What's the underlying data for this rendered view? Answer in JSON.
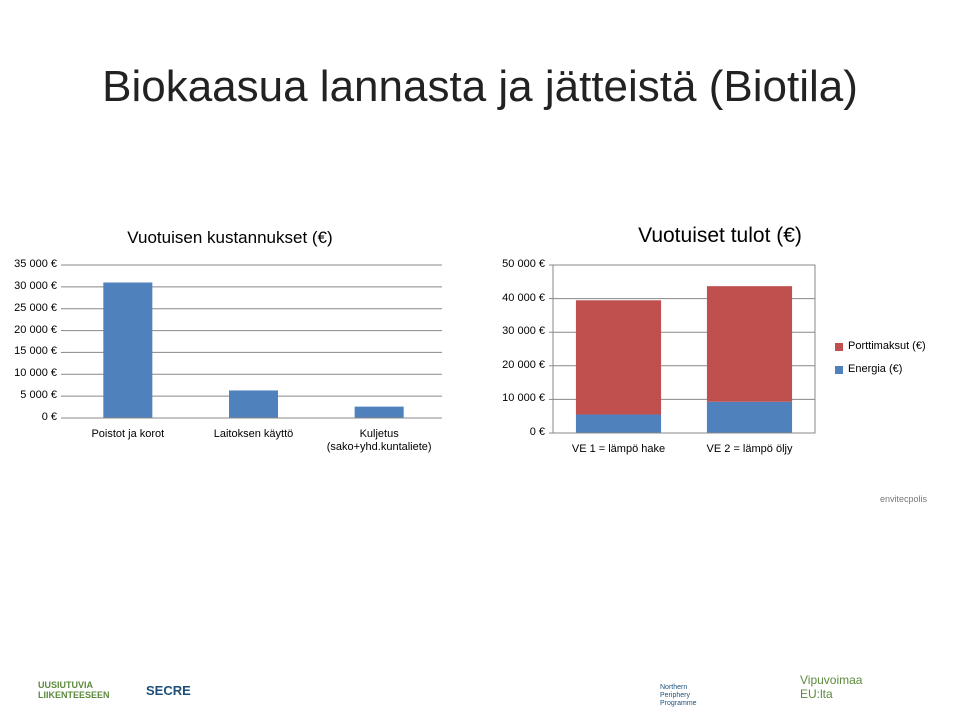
{
  "slide_title": "Biokaasua lannasta ja jätteistä (Biotila)",
  "chart_data": [
    {
      "type": "bar",
      "title": "Vuotuisen kustannukset (€)",
      "categories": [
        "Poistot ja korot",
        "Laitoksen käyttö",
        "Kuljetus\n(sako+yhd.kuntaliete)"
      ],
      "values": [
        31000,
        6300,
        2600
      ],
      "color": "#4f81bd",
      "ylim": [
        0,
        35000
      ],
      "yticks": [
        {
          "value": 0,
          "label": "0 €"
        },
        {
          "value": 5000,
          "label": "5 000 €"
        },
        {
          "value": 10000,
          "label": "10 000 €"
        },
        {
          "value": 15000,
          "label": "15 000 €"
        },
        {
          "value": 20000,
          "label": "20 000 €"
        },
        {
          "value": 25000,
          "label": "25 000 €"
        },
        {
          "value": 30000,
          "label": "30 000 €"
        },
        {
          "value": 35000,
          "label": "35 000 €"
        }
      ],
      "grid": true
    },
    {
      "type": "stacked_bar",
      "title": "Vuotuiset tulot (€)",
      "categories": [
        "VE 1 = lämpö hake",
        "VE 2 = lämpö öljy"
      ],
      "series": [
        {
          "name": "Energia (€)",
          "color": "#4f81bd",
          "values": [
            5500,
            9300
          ]
        },
        {
          "name": "Porttimaksut (€)",
          "color": "#c0504d",
          "values": [
            34000,
            34400
          ]
        }
      ],
      "ylim": [
        0,
        50000
      ],
      "yticks": [
        {
          "value": 0,
          "label": "0 €"
        },
        {
          "value": 10000,
          "label": "10 000 €"
        },
        {
          "value": 20000,
          "label": "20 000 €"
        },
        {
          "value": 30000,
          "label": "30 000 €"
        },
        {
          "value": 40000,
          "label": "40 000 €"
        },
        {
          "value": 50000,
          "label": "50 000 €"
        }
      ],
      "grid": true,
      "legend": "right"
    }
  ],
  "logos": [
    "UUSIUTUVIA\nLIIKENTEESEEN",
    "SECRE",
    "Northern\nPeriphery\nProgramme",
    "Vipuvoimaa\nEU:lta",
    "envitecpolis"
  ]
}
